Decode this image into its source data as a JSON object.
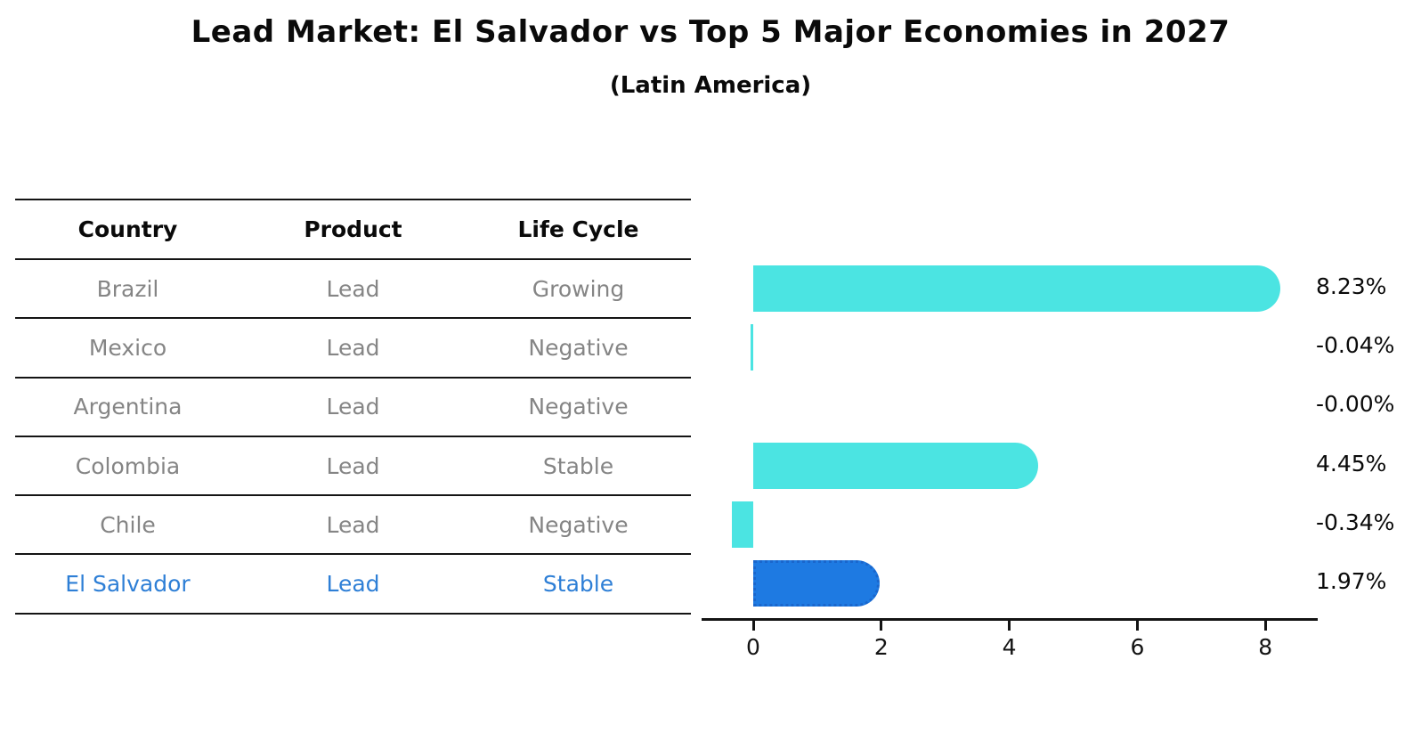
{
  "title": "Lead Market: El Salvador vs Top 5 Major Economies in 2027",
  "subtitle": "(Latin America)",
  "table": {
    "headers": [
      "Country",
      "Product",
      "Life Cycle"
    ],
    "rows": [
      {
        "country": "Brazil",
        "product": "Lead",
        "life_cycle": "Growing",
        "highlight": false
      },
      {
        "country": "Mexico",
        "product": "Lead",
        "life_cycle": "Negative",
        "highlight": false
      },
      {
        "country": "Argentina",
        "product": "Lead",
        "life_cycle": "Negative",
        "highlight": false
      },
      {
        "country": "Colombia",
        "product": "Lead",
        "life_cycle": "Stable",
        "highlight": false
      },
      {
        "country": "Chile",
        "product": "Lead",
        "life_cycle": "Negative",
        "highlight": false
      },
      {
        "country": "El Salvador",
        "product": "Lead",
        "life_cycle": "Stable",
        "highlight": true
      }
    ]
  },
  "chart_data": {
    "type": "bar",
    "orientation": "horizontal",
    "title": "Lead Market: El Salvador vs Top 5 Major Economies in 2027",
    "subtitle": "(Latin America)",
    "categories": [
      "Brazil",
      "Mexico",
      "Argentina",
      "Colombia",
      "Chile",
      "El Salvador"
    ],
    "values": [
      8.23,
      -0.04,
      -0.0,
      4.45,
      -0.34,
      1.97
    ],
    "value_labels": [
      "8.23%",
      "-0.04%",
      "-0.00%",
      "4.45%",
      "-0.34%",
      "1.97%"
    ],
    "xticks": [
      "0",
      "2",
      "4",
      "6",
      "8"
    ],
    "xtick_values": [
      0,
      2,
      4,
      6,
      8
    ],
    "xlim": [
      -0.8,
      8.8
    ],
    "grid": false,
    "legend": false,
    "highlight_index": 5,
    "highlight_style": "dotted-border"
  },
  "colors": {
    "bar_default": "#4be4e2",
    "bar_highlight": "#1e7ae2",
    "bar_highlight_border": "#1a66cc",
    "highlight_text": "#2e7fd6",
    "muted_text": "#858585",
    "strong_text": "#0a0a0a",
    "axis": "#141414"
  }
}
